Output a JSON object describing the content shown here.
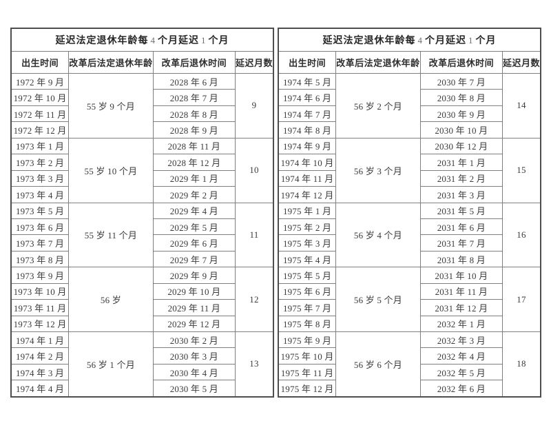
{
  "colors": {
    "background": "#ffffff",
    "border_outer": "#4d4d4d",
    "border_inner": "#7e7e7e",
    "text": "#3a3a3a",
    "title_digit": "#6e6e6e"
  },
  "table_title": {
    "parts": [
      "延迟法定退休年龄每",
      "4",
      "个月延迟",
      "1",
      "个月"
    ]
  },
  "columns": [
    "出生时间",
    "改革后法定退休年龄",
    "改革后退休时间",
    "延迟月数"
  ],
  "tables": [
    {
      "groups": [
        {
          "births": [
            "1972 年 9 月",
            "1972 年 10 月",
            "1972 年 11 月",
            "1972 年 12 月"
          ],
          "age": "55 岁 9 个月",
          "retire_dates": [
            "2028 年 6 月",
            "2028 年 7 月",
            "2028 年 8 月",
            "2028 年 9 月"
          ],
          "delay": "9"
        },
        {
          "births": [
            "1973 年 1 月",
            "1973 年 2 月",
            "1973 年 3 月",
            "1973 年 4 月"
          ],
          "age": "55 岁 10 个月",
          "retire_dates": [
            "2028 年 11 月",
            "2028 年 12 月",
            "2029 年 1 月",
            "2029 年 2 月"
          ],
          "delay": "10"
        },
        {
          "births": [
            "1973 年 5 月",
            "1973 年 6 月",
            "1973 年 7 月",
            "1973 年 8 月"
          ],
          "age": "55 岁 11 个月",
          "retire_dates": [
            "2029 年 4 月",
            "2029 年 5 月",
            "2029 年 6 月",
            "2029 年 7 月"
          ],
          "delay": "11"
        },
        {
          "births": [
            "1973 年 9 月",
            "1973 年 10 月",
            "1973 年 11 月",
            "1973 年 12 月"
          ],
          "age": "56 岁",
          "retire_dates": [
            "2029 年 9 月",
            "2029 年 10 月",
            "2029 年 11 月",
            "2029 年 12 月"
          ],
          "delay": "12"
        },
        {
          "births": [
            "1974 年 1 月",
            "1974 年 2 月",
            "1974 年 3 月",
            "1974 年 4 月"
          ],
          "age": "56 岁 1 个月",
          "retire_dates": [
            "2030 年 2 月",
            "2030 年 3 月",
            "2030 年 4 月",
            "2030 年 5 月"
          ],
          "delay": "13"
        }
      ]
    },
    {
      "groups": [
        {
          "births": [
            "1974 年 5 月",
            "1974 年 6 月",
            "1974 年 7 月",
            "1974 年 8 月"
          ],
          "age": "56 岁 2 个月",
          "retire_dates": [
            "2030 年 7 月",
            "2030 年 8 月",
            "2030 年 9 月",
            "2030 年 10 月"
          ],
          "delay": "14"
        },
        {
          "births": [
            "1974 年 9 月",
            "1974 年 10 月",
            "1974 年 11 月",
            "1974 年 12 月"
          ],
          "age": "56 岁 3 个月",
          "retire_dates": [
            "2030 年 12 月",
            "2031 年 1 月",
            "2031 年 2 月",
            "2031 年 3 月"
          ],
          "delay": "15"
        },
        {
          "births": [
            "1975 年 1 月",
            "1975 年 2 月",
            "1975 年 3 月",
            "1975 年 4 月"
          ],
          "age": "56 岁 4 个月",
          "retire_dates": [
            "2031 年 5 月",
            "2031 年 6 月",
            "2031 年 7 月",
            "2031 年 8 月"
          ],
          "delay": "16"
        },
        {
          "births": [
            "1975 年 5 月",
            "1975 年 6 月",
            "1975 年 7 月",
            "1975 年 8 月"
          ],
          "age": "56 岁 5 个月",
          "retire_dates": [
            "2031 年 10 月",
            "2031 年 11 月",
            "2031 年 12 月",
            "2032 年 1 月"
          ],
          "delay": "17"
        },
        {
          "births": [
            "1975 年 9 月",
            "1975 年 10 月",
            "1975 年 11 月",
            "1975 年 12 月"
          ],
          "age": "56 岁 6 个月",
          "retire_dates": [
            "2032 年 3 月",
            "2032 年 4 月",
            "2032 年 5 月",
            "2032 年 6 月"
          ],
          "delay": "18"
        }
      ]
    }
  ]
}
